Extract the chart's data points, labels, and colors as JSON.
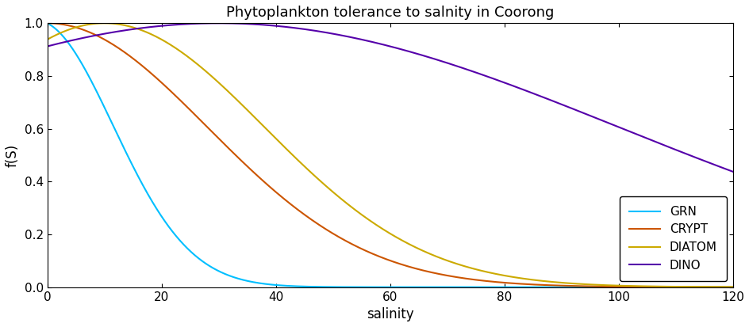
{
  "title": "Phytoplankton tolerance to salnity in Coorong",
  "xlabel": "salinity",
  "ylabel": "f(S)",
  "xlim": [
    0,
    120
  ],
  "ylim": [
    0,
    1.0
  ],
  "xticks": [
    0,
    20,
    40,
    60,
    80,
    100,
    120
  ],
  "yticks": [
    0,
    0.2,
    0.4,
    0.6,
    0.8,
    1.0
  ],
  "groups": [
    {
      "name": "GRN",
      "color": "#00BFFF",
      "mu": -2,
      "sigma": 13.5
    },
    {
      "name": "CRYPT",
      "color": "#CC5500",
      "mu": 0,
      "sigma": 28.0
    },
    {
      "name": "DIATOM",
      "color": "#CCAA00",
      "mu": 10,
      "sigma": 28.0
    },
    {
      "name": "DINO",
      "color": "#5500AA",
      "mu": 30,
      "sigma": 70.0
    }
  ],
  "legend_loc": "lower right",
  "figsize": [
    9.45,
    4.13
  ],
  "dpi": 100,
  "background_color": "#ffffff"
}
